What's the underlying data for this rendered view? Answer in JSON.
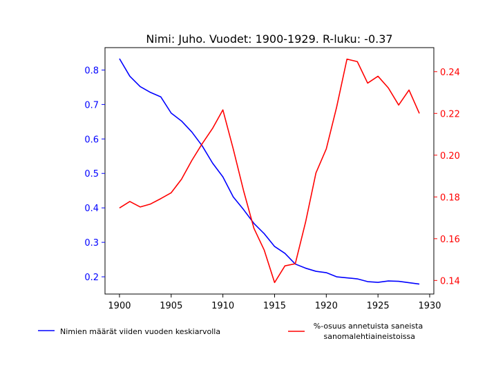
{
  "chart_data": {
    "type": "line",
    "title": "Nimi: Juho. Vuodet: 1900-1929. R-luku: -0.37",
    "x": [
      1900,
      1901,
      1902,
      1903,
      1904,
      1905,
      1906,
      1907,
      1908,
      1909,
      1910,
      1911,
      1912,
      1913,
      1914,
      1915,
      1916,
      1917,
      1918,
      1919,
      1920,
      1921,
      1922,
      1923,
      1924,
      1925,
      1926,
      1927,
      1928,
      1929
    ],
    "x_ticks": [
      1900,
      1905,
      1910,
      1915,
      1920,
      1925,
      1930
    ],
    "xlim": [
      1898.6,
      1930.4
    ],
    "y_left": {
      "ylim": [
        0.15,
        0.865
      ],
      "ticks": [
        0.2,
        0.3,
        0.4,
        0.5,
        0.6,
        0.7,
        0.8
      ],
      "color": "#0000ff"
    },
    "y_right": {
      "ylim": [
        0.1335,
        0.2515
      ],
      "ticks": [
        0.14,
        0.16,
        0.18,
        0.2,
        0.22,
        0.24
      ],
      "color": "#ff0000"
    },
    "series": [
      {
        "name": "Nimien määrät viiden vuoden keskiarvolla",
        "axis": "left",
        "color": "#0000ff",
        "values": [
          0.833,
          0.782,
          0.752,
          0.735,
          0.722,
          0.675,
          0.652,
          0.62,
          0.58,
          0.53,
          0.49,
          0.432,
          0.395,
          0.355,
          0.325,
          0.288,
          0.268,
          0.237,
          0.225,
          0.216,
          0.212,
          0.2,
          0.197,
          0.194,
          0.186,
          0.184,
          0.188,
          0.187,
          0.183,
          0.179
        ]
      },
      {
        "name": "%-osuus annetuista saneista\n sanomalehtiaineistoissa",
        "axis": "right",
        "color": "#ff0000",
        "values": [
          0.1747,
          0.1778,
          0.1752,
          0.1766,
          0.1792,
          0.182,
          0.1885,
          0.1975,
          0.2055,
          0.2128,
          0.2217,
          0.203,
          0.183,
          0.165,
          0.1545,
          0.139,
          0.147,
          0.148,
          0.168,
          0.1915,
          0.203,
          0.223,
          0.246,
          0.2448,
          0.2345,
          0.2378,
          0.2322,
          0.224,
          0.2312,
          0.22
        ]
      }
    ],
    "legend": {
      "placement": "bottom",
      "entries": [
        "Nimien määrät viiden vuoden keskiarvolla",
        "%-osuus annetuista saneista\n sanomalehtiaineistoissa"
      ]
    }
  }
}
